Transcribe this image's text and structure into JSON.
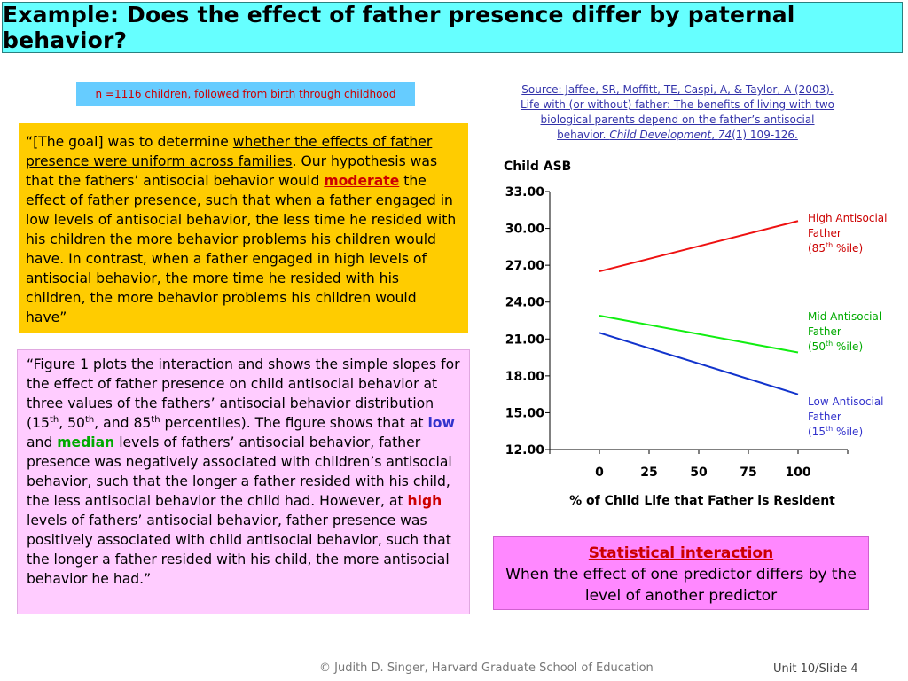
{
  "title": "Example: Does the effect of father presence differ by paternal behavior?",
  "sample_note": "n =1116 children, followed from birth through childhood",
  "source": {
    "line1": "Source: Jaffee, SR, Moffitt, TE, Caspi, A, & Taylor, A (2003).",
    "line2": "Life with (or without) father: The benefits of living with two",
    "line3": "biological parents depend on the father’s antisocial",
    "line4_a": "behavior.  ",
    "line4_journal": "Child Development",
    "line4_b": ", ",
    "line4_vol": "74",
    "line4_c": "(1) 109-126."
  },
  "quote1": {
    "p1": "“[The goal] was to determine ",
    "p2": "whether the effects of father presence were uniform across families",
    "p3": ".  Our hypothesis was that the fathers’ antisocial behavior would ",
    "p4": "moderate",
    "p5": " the effect of father presence, such that when a father engaged in low levels of antisocial behavior, the less time he resided with his children the more behavior problems his children would have.  In contrast, when a father engaged in high levels of antisocial behavior, the more time he resided with his children, the more behavior problems his children would have”"
  },
  "quote2": {
    "p1": "“Figure 1 plots the interaction and shows the simple slopes for the effect of father presence on child antisocial behavior at three values of the fathers’ antisocial behavior distribution (15",
    "sup1": "th",
    "p2": ", 50",
    "sup2": "th",
    "p3": ", and 85",
    "sup3": "th",
    "p4": " percentiles). The figure shows that at ",
    "low": "low",
    "p5": " and ",
    "median": "median",
    "p6": " levels of fathers’ antisocial behavior, father presence was negatively associated with children’s antisocial behavior, such that the longer a father resided with his child, the less antisocial behavior the child had.  However, at ",
    "high": "high",
    "p7": " levels of fathers’ antisocial behavior, father presence was positively associated with child antisocial behavior, such that the longer a father resided with his child, the more antisocial behavior he had.”"
  },
  "chart_data": {
    "type": "line",
    "ylabel": "Child ASB",
    "xlabel": "% of Child Life that Father is Resident",
    "x": [
      0,
      100
    ],
    "xticks": [
      "0",
      "25",
      "50",
      "75",
      "100"
    ],
    "xlim": [
      -25,
      125
    ],
    "ylim": [
      12,
      33
    ],
    "yticks": [
      "33.00",
      "30.00",
      "27.00",
      "24.00",
      "21.00",
      "18.00",
      "15.00",
      "12.00"
    ],
    "series": [
      {
        "name_line1": "High Antisocial",
        "name_line2": "Father",
        "pct": "85",
        "pct_sup": "th",
        "pct_suffix": " %ile)",
        "color": "#ee1111",
        "values": [
          26.5,
          30.6
        ]
      },
      {
        "name_line1": "Mid Antisocial",
        "name_line2": "Father",
        "pct": "50",
        "pct_sup": "th",
        "pct_suffix": " %ile)",
        "color": "#11ee11",
        "values": [
          22.9,
          19.9
        ]
      },
      {
        "name_line1": "Low Antisocial",
        "name_line2": "Father",
        "pct": "15",
        "pct_sup": "th",
        "pct_suffix": " %ile)",
        "color": "#1133cc",
        "values": [
          21.5,
          16.5
        ]
      }
    ]
  },
  "interaction": {
    "heading": "Statistical interaction",
    "text": "When the effect of one predictor differs by the level of another predictor"
  },
  "footer": {
    "copyright": "© Judith D. Singer, Harvard Graduate School of Education",
    "slide": "Unit 10/Slide 4"
  }
}
